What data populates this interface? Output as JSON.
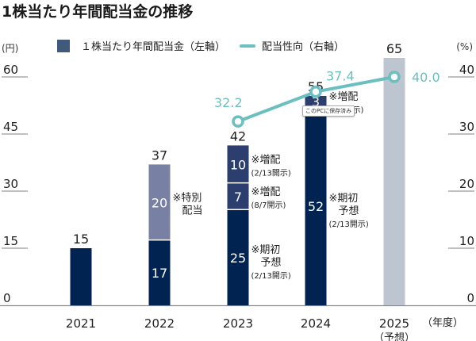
{
  "chart_data": {
    "type": "bar",
    "title": "1株当たり年間配当金の推移",
    "categories": [
      "2021",
      "2022",
      "2023",
      "2024",
      "2025"
    ],
    "category_sublabels": [
      "",
      "",
      "",
      "",
      "（予想）"
    ],
    "xlabel": "（年度）",
    "left_axis": {
      "unit": "(円)",
      "ylim": [
        0,
        60
      ],
      "ticks": [
        0,
        15,
        30,
        45,
        60
      ]
    },
    "right_axis": {
      "unit": "(%)",
      "ylim": [
        0,
        40
      ],
      "ticks": [
        0,
        10,
        20,
        30,
        40
      ]
    },
    "legend": [
      {
        "label": "１株当たり年間配当金（左軸）",
        "type": "bar",
        "color": "#3f5a7a"
      },
      {
        "label": "配当性向（右軸）",
        "type": "line",
        "color": "#6bbfc0"
      }
    ],
    "legend_position": "top",
    "bar_totals": [
      15,
      37,
      42,
      55,
      65
    ],
    "bar_segments": [
      [
        {
          "value": 15,
          "label": "",
          "color": "#002352"
        }
      ],
      [
        {
          "value": 17,
          "label": "17",
          "color": "#002352"
        },
        {
          "value": 20,
          "label": "20",
          "color": "#7880a4",
          "note": [
            "※特別",
            "配当"
          ]
        }
      ],
      [
        {
          "value": 25,
          "label": "25",
          "color": "#002352",
          "note": [
            "※期初",
            "予想",
            "(2/13開示)"
          ]
        },
        {
          "value": 7,
          "label": "7",
          "color": "#2c3e6e",
          "note": [
            "※増配",
            "(8/7開示)"
          ]
        },
        {
          "value": 10,
          "label": "10",
          "color": "#2c3e6e",
          "note": [
            "※増配",
            "(2/13開示)"
          ]
        }
      ],
      [
        {
          "value": 52,
          "label": "52",
          "color": "#002352",
          "note": [
            "※期初",
            "予想",
            "(2/13開示)"
          ]
        },
        {
          "value": 3,
          "label": "3",
          "color": "#2c3e6e",
          "note": [
            "※増配",
            "(8/5開示)"
          ]
        }
      ],
      [
        {
          "value": 65,
          "label": "",
          "color": "#bcc5d0"
        }
      ]
    ],
    "series": [
      {
        "name": "配当性向（右軸）",
        "axis": "right",
        "x": [
          "2023",
          "2024",
          "2025"
        ],
        "values": [
          32.2,
          37.4,
          40.0
        ],
        "labels": [
          "32.2",
          "37.4",
          "40.0"
        ],
        "color": "#6bbfc0"
      }
    ],
    "grid": false
  },
  "overlay": {
    "tooltip": "このPCに保存済み"
  }
}
